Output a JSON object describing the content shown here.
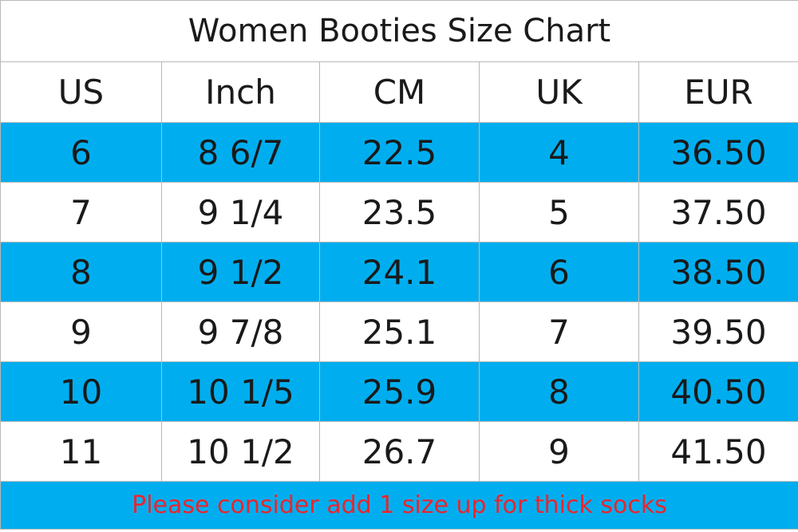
{
  "header": {
    "title": "Women Booties Size Chart"
  },
  "table": {
    "columns": [
      "US",
      "Inch",
      "CM",
      "UK",
      "EUR"
    ],
    "rows": [
      [
        "6",
        "8 6/7",
        "22.5",
        "4",
        "36.50"
      ],
      [
        "7",
        "9 1/4",
        "23.5",
        "5",
        "37.50"
      ],
      [
        "8",
        "9 1/2",
        "24.1",
        "6",
        "38.50"
      ],
      [
        "9",
        "9 7/8",
        "25.1",
        "7",
        "39.50"
      ],
      [
        "10",
        "10 1/5",
        "25.9",
        "8",
        "40.50"
      ],
      [
        "11",
        "10 1/2",
        "26.7",
        "9",
        "41.50"
      ]
    ]
  },
  "footer": {
    "note": "Please consider add 1 size up for thick socks"
  }
}
